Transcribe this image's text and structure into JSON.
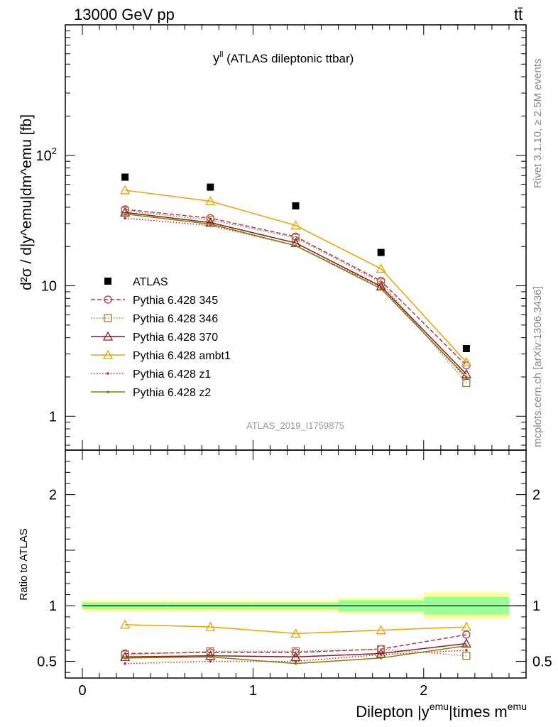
{
  "header": {
    "left": "13000 GeV pp",
    "right": "tt̄"
  },
  "side_labels": {
    "rivet": "Rivet 3.1.10, ≥ 2.5M events",
    "mcplots": "mcplots.cern.ch [arXiv:1306.3436]"
  },
  "watermark": "ATLAS_2019_I1759875",
  "chart_data": {
    "type": "line",
    "title": "y^ll (ATLAS dileptonic ttbar)",
    "title_parts": {
      "base": "y",
      "sup": "ll",
      "rest": " (ATLAS dileptonic ttbar)"
    },
    "xlabel": "Dilepton |y^emu|times m^emu",
    "xlabel_parts": {
      "a": "Dilepton |y",
      "sup1": "emu",
      "b": "|times m",
      "sup2": "emu"
    },
    "ylabel": "d²σ / d|y^emu|dm^emu [fb]",
    "ratio_ylabel": "Ratio to ATLAS",
    "x_range": [
      -0.1,
      2.6
    ],
    "x_ticks": [
      "0",
      "1",
      "2"
    ],
    "main_yscale": "log",
    "main_yrange": [
      0.55,
      1000
    ],
    "main_yticks": [
      "1",
      "10",
      "10²"
    ],
    "ratio_yrange": [
      0.35,
      2.4
    ],
    "ratio_yticks": [
      "0.5",
      "1",
      "2"
    ],
    "bins": [
      [
        0,
        0.5
      ],
      [
        0.5,
        1.0
      ],
      [
        1.0,
        1.5
      ],
      [
        1.5,
        2.0
      ],
      [
        2.0,
        2.5
      ]
    ],
    "x": [
      0.25,
      0.75,
      1.25,
      1.75,
      2.25
    ],
    "data": {
      "name": "ATLAS",
      "values": [
        68,
        57,
        41,
        18,
        3.3
      ]
    },
    "data_band_inner": [
      0.03,
      0.03,
      0.03,
      0.05,
      0.08
    ],
    "data_band_outer": [
      0.05,
      0.05,
      0.05,
      0.07,
      0.12
    ],
    "series": [
      {
        "name": "Pythia 6.428 345",
        "color": "#b03a4e",
        "dash": "6,3",
        "marker": "circle",
        "values": [
          38.5,
          33,
          23.8,
          10.9,
          2.45
        ],
        "ratio": [
          0.57,
          0.58,
          0.58,
          0.61,
          0.74
        ]
      },
      {
        "name": "Pythia 6.428 346",
        "color": "#a0783c",
        "dash": "1.5,2.5",
        "marker": "square",
        "values": [
          37.5,
          32,
          23.3,
          10.6,
          1.8
        ],
        "ratio": [
          0.56,
          0.59,
          0.59,
          0.61,
          0.55
        ]
      },
      {
        "name": "Pythia 6.428 370",
        "color": "#8b1a2b",
        "dash": "",
        "marker": "triangle",
        "values": [
          36.5,
          30.5,
          21.3,
          9.9,
          2.1
        ],
        "ratio": [
          0.54,
          0.55,
          0.54,
          0.57,
          0.66
        ]
      },
      {
        "name": "Pythia 6.428 ambt1",
        "color": "#f0a000",
        "dash": "",
        "marker": "triangle",
        "values": [
          54,
          44.5,
          29,
          13.5,
          2.6
        ],
        "ratio": [
          0.83,
          0.81,
          0.75,
          0.78,
          0.81
        ]
      },
      {
        "name": "Pythia 6.428 z1",
        "color": "#d62020",
        "dash": "1.5,2.5",
        "marker": "dot",
        "values": [
          33,
          29,
          20.3,
          9.8,
          1.95
        ],
        "ratio": [
          0.48,
          0.5,
          0.5,
          0.56,
          0.6
        ]
      },
      {
        "name": "Pythia 6.428 z2",
        "color": "#808000",
        "dash": "",
        "marker": "dot",
        "values": [
          35.5,
          29.7,
          20.3,
          9.5,
          2.0
        ],
        "ratio": [
          0.53,
          0.54,
          0.48,
          0.53,
          0.64
        ]
      }
    ],
    "legend_position": "middle-left"
  }
}
